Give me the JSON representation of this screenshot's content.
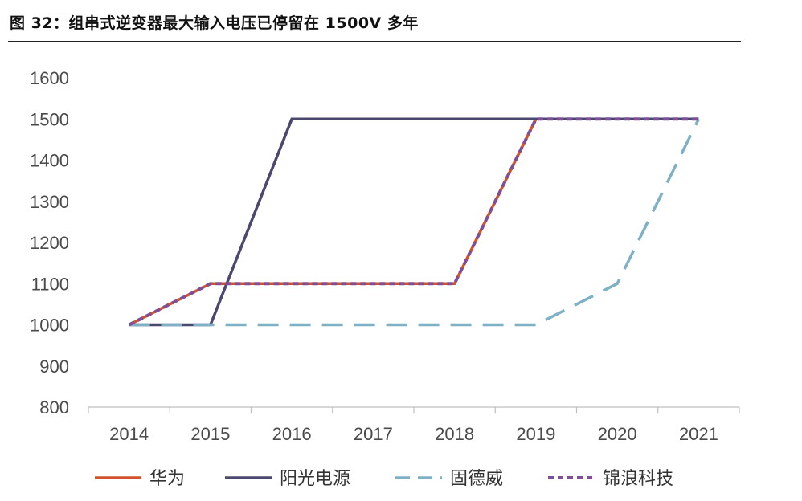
{
  "title": "图 32：组串式逆变器最大输入电压已停留在 1500V 多年",
  "chart_data": {
    "type": "line",
    "categories": [
      "2014",
      "2015",
      "2016",
      "2017",
      "2018",
      "2019",
      "2020",
      "2021"
    ],
    "ylim": [
      800,
      1600
    ],
    "yticks": [
      800,
      900,
      1000,
      1100,
      1200,
      1300,
      1400,
      1500,
      1600
    ],
    "grid": false,
    "legend_position": "bottom",
    "series": [
      {
        "name": "华为",
        "color": "#D2522C",
        "dash": "solid",
        "values": [
          1000,
          1100,
          1100,
          1100,
          1100,
          1500,
          1500,
          1500
        ]
      },
      {
        "name": "阳光电源",
        "color": "#4B4870",
        "dash": "solid",
        "values": [
          1000,
          1000,
          1500,
          1500,
          1500,
          1500,
          1500,
          1500
        ]
      },
      {
        "name": "固德威",
        "color": "#7FB1C6",
        "dash": "long-dash",
        "values": [
          1000,
          1000,
          1000,
          1000,
          1000,
          1000,
          1100,
          1500
        ]
      },
      {
        "name": "锦浪科技",
        "color": "#7F4F95",
        "dash": "short-dash",
        "values": [
          1000,
          1100,
          1100,
          1100,
          1100,
          1500,
          1500,
          1500
        ]
      }
    ]
  }
}
